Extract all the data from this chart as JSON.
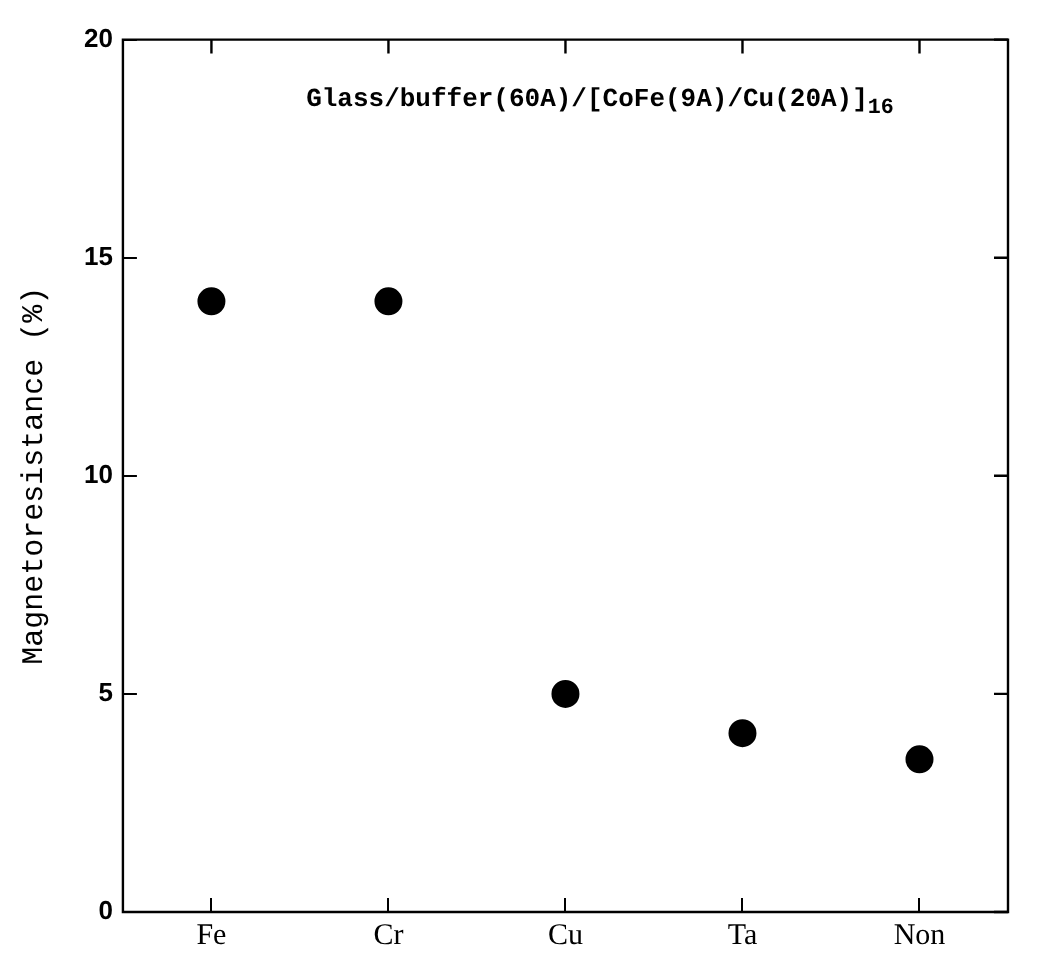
{
  "chart_data": {
    "type": "scatter",
    "title": "Glass/buffer(60A)/[CoFe(9A)/Cu(20A)]$_{16}$",
    "ylabel": "Magnetoresistance (%)",
    "categories": [
      "Fe",
      "Cr",
      "Cu",
      "Ta",
      "Non"
    ],
    "series": [
      {
        "color": "#000000",
        "values": [
          14,
          14,
          5,
          4.1,
          3.5
        ]
      }
    ],
    "ylim": [
      0,
      20
    ],
    "yticks": [
      0,
      5,
      10,
      15,
      20
    ],
    "grid": false,
    "legend": false,
    "marker": "circle"
  }
}
